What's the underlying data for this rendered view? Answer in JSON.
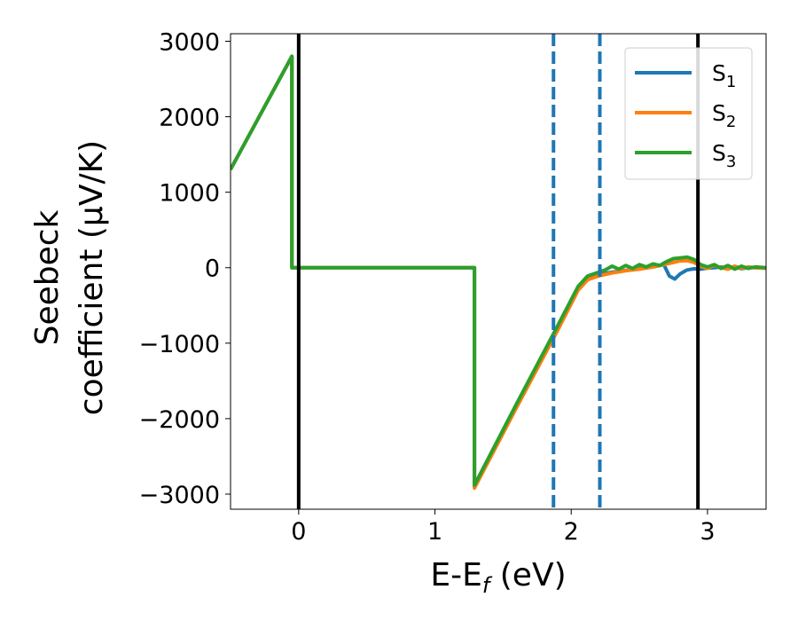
{
  "chart_data": {
    "type": "line",
    "xlabel": "E-E_f (eV)",
    "xlabel_main": "E-E",
    "xlabel_sub": "f",
    "xlabel_tail": " (eV)",
    "ylabel_line1": "Seebeck",
    "ylabel_line2": "coefficient  (μV/K)",
    "xlim": [
      -0.5,
      3.43
    ],
    "ylim": [
      -3200,
      3100
    ],
    "xticks": [
      0,
      1,
      2,
      3
    ],
    "xtick_labels": [
      "0",
      "1",
      "2",
      "3"
    ],
    "yticks": [
      3000,
      2000,
      1000,
      0,
      -1000,
      -2000,
      -3000
    ],
    "ytick_labels": [
      "3000",
      "2000",
      "1000",
      "0",
      "−1000",
      "−2000",
      "−3000"
    ],
    "grid": false,
    "legend_position": "top-right",
    "vlines": [
      {
        "x": 0.0,
        "style": "solid",
        "color": "#000000"
      },
      {
        "x": 1.87,
        "style": "dashed",
        "color": "#1f77b4"
      },
      {
        "x": 2.21,
        "style": "dashed",
        "color": "#1f77b4"
      },
      {
        "x": 2.93,
        "style": "solid",
        "color": "#000000"
      }
    ],
    "series": [
      {
        "name": "S_1",
        "label_main": "S",
        "label_sub": "1",
        "color": "#1f77b4",
        "x": [
          -0.5,
          -0.05,
          -0.05,
          1.29,
          1.29,
          1.6,
          1.9,
          2.05,
          2.12,
          2.2,
          2.3,
          2.4,
          2.5,
          2.6,
          2.68,
          2.72,
          2.76,
          2.8,
          2.85,
          2.9,
          2.95,
          3.0,
          3.05,
          3.1,
          3.15,
          3.2,
          3.25,
          3.3,
          3.35,
          3.43
        ],
        "y": [
          1300,
          2800,
          0,
          0,
          -2900,
          -1820,
          -800,
          -280,
          -140,
          -90,
          -60,
          -35,
          -10,
          10,
          40,
          -110,
          -150,
          -80,
          -30,
          -15,
          -20,
          -5,
          0,
          10,
          -10,
          15,
          -15,
          5,
          0,
          -5
        ]
      },
      {
        "name": "S_2",
        "label_main": "S",
        "label_sub": "2",
        "color": "#ff7f0e",
        "x": [
          -0.5,
          -0.05,
          -0.05,
          1.29,
          1.29,
          1.6,
          1.9,
          2.05,
          2.12,
          2.2,
          2.3,
          2.4,
          2.5,
          2.6,
          2.7,
          2.8,
          2.85,
          2.9,
          2.95,
          3.0,
          3.05,
          3.1,
          3.15,
          3.2,
          3.25,
          3.3,
          3.35,
          3.43
        ],
        "y": [
          1300,
          2800,
          0,
          0,
          -2920,
          -1850,
          -830,
          -300,
          -160,
          -110,
          -70,
          -40,
          -20,
          10,
          50,
          90,
          95,
          70,
          20,
          -10,
          30,
          0,
          -20,
          20,
          -10,
          10,
          0,
          -5
        ]
      },
      {
        "name": "S_3",
        "label_main": "S",
        "label_sub": "3",
        "color": "#2ca02c",
        "x": [
          -0.5,
          -0.05,
          -0.05,
          1.29,
          1.29,
          1.6,
          1.9,
          2.05,
          2.12,
          2.2,
          2.25,
          2.3,
          2.35,
          2.4,
          2.45,
          2.5,
          2.55,
          2.6,
          2.65,
          2.7,
          2.75,
          2.8,
          2.85,
          2.9,
          2.95,
          3.0,
          3.05,
          3.1,
          3.15,
          3.2,
          3.25,
          3.3,
          3.35,
          3.43
        ],
        "y": [
          1300,
          2800,
          0,
          0,
          -2880,
          -1800,
          -770,
          -250,
          -110,
          -60,
          -30,
          20,
          -20,
          30,
          -10,
          40,
          10,
          50,
          30,
          80,
          120,
          130,
          140,
          110,
          40,
          10,
          40,
          -10,
          30,
          -20,
          20,
          -10,
          10,
          0
        ]
      }
    ]
  }
}
